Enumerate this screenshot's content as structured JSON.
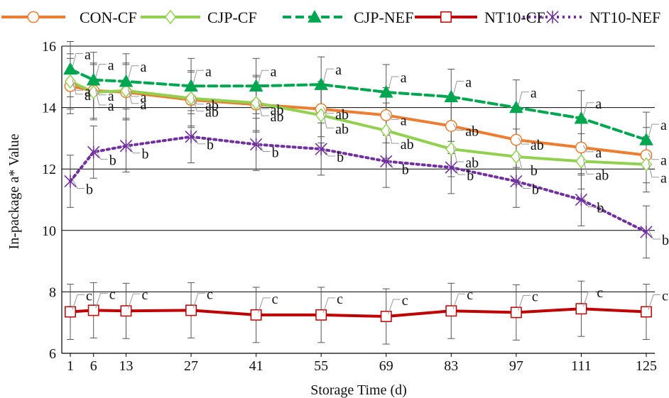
{
  "chart_data": {
    "type": "line",
    "xlabel": "Storage Time (d)",
    "ylabel": "In-package a* Value",
    "x": [
      1,
      6,
      13,
      27,
      41,
      55,
      69,
      83,
      97,
      111,
      125
    ],
    "xticks": [
      "1",
      "6",
      "13",
      "27",
      "41",
      "55",
      "69",
      "83",
      "97",
      "111",
      "125"
    ],
    "ylim": [
      6,
      16
    ],
    "yticks": [
      "6",
      "8",
      "10",
      "12",
      "14",
      "16"
    ],
    "grid": "horizontal",
    "legend_position": "top",
    "series": [
      {
        "name": "CON-CF",
        "color": "#ED7D31",
        "marker": "circle-open",
        "dash": "solid",
        "values": [
          14.7,
          14.55,
          14.5,
          14.25,
          14.1,
          13.95,
          13.75,
          13.4,
          12.95,
          12.7,
          12.45
        ],
        "error": [
          0.9,
          0.9,
          0.9,
          0.9,
          0.9,
          0.9,
          0.9,
          0.9,
          0.9,
          0.9,
          0.9
        ],
        "labels": [
          "a",
          "a",
          "a",
          "ab",
          "ab",
          "ab",
          "a",
          "ab",
          "ab",
          "a",
          "a"
        ]
      },
      {
        "name": "CJP-CF",
        "color": "#92D050",
        "marker": "diamond-open",
        "dash": "solid",
        "values": [
          14.85,
          14.5,
          14.55,
          14.3,
          14.15,
          13.75,
          13.25,
          12.65,
          12.4,
          12.25,
          12.15
        ],
        "error": [
          0.9,
          0.9,
          0.9,
          0.9,
          0.9,
          0.9,
          0.9,
          0.9,
          0.9,
          0.9,
          0.9
        ],
        "labels": [
          "a",
          "a",
          "a",
          "ab",
          "ab",
          "ab",
          "ab",
          "ab",
          "b",
          "ab",
          "a"
        ]
      },
      {
        "name": "CJP-NEF",
        "color": "#00A650",
        "marker": "triangle-filled",
        "dash": "dashed",
        "values": [
          15.25,
          14.9,
          14.85,
          14.7,
          14.7,
          14.75,
          14.5,
          14.35,
          14.0,
          13.65,
          12.95
        ],
        "error": [
          0.9,
          0.9,
          0.9,
          0.9,
          0.9,
          0.9,
          0.9,
          0.9,
          0.9,
          0.9,
          0.9
        ],
        "labels": [
          "a",
          "a",
          "a",
          "a",
          "a",
          "a",
          "a",
          "a",
          "a",
          "a",
          "a"
        ]
      },
      {
        "name": "NT10-CF",
        "color": "#C00000",
        "marker": "square-open",
        "dash": "solid",
        "values": [
          7.35,
          7.4,
          7.38,
          7.4,
          7.25,
          7.25,
          7.2,
          7.38,
          7.33,
          7.45,
          7.35
        ],
        "error": [
          0.9,
          0.9,
          0.9,
          0.9,
          0.9,
          0.9,
          0.9,
          0.9,
          0.9,
          0.9,
          0.9
        ],
        "labels": [
          "c",
          "c",
          "c",
          "c",
          "c",
          "c",
          "c",
          "c",
          "c",
          "c",
          "c"
        ]
      },
      {
        "name": "NT10-NEF",
        "color": "#7030A0",
        "marker": "star-x",
        "dash": "dotted",
        "values": [
          11.6,
          12.55,
          12.75,
          13.05,
          12.8,
          12.65,
          12.25,
          12.05,
          11.6,
          11.0,
          9.95
        ],
        "error": [
          0.85,
          0.85,
          0.85,
          0.85,
          0.85,
          0.85,
          0.85,
          0.85,
          0.85,
          0.85,
          0.85
        ],
        "labels": [
          "b",
          "b",
          "b",
          "b",
          "b",
          "b",
          "b",
          "b",
          "b",
          "b",
          "b"
        ]
      }
    ]
  }
}
